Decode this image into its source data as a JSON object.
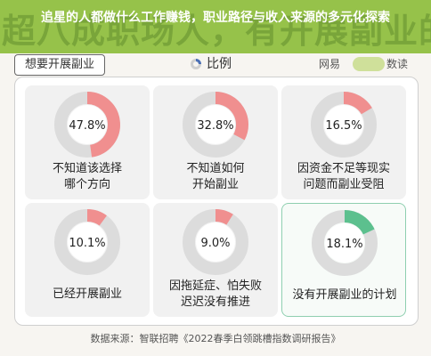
{
  "banner": {
    "headline": "追星的人都做什么工作赚钱，职业路径与收入来源的多元化探索",
    "ghost_title": "超八成职场人，有开展副业的意愿"
  },
  "ribbon_label": "想要开展副业",
  "legend": {
    "label": "比例",
    "icon": "donut-icon"
  },
  "brand": {
    "left": "网易",
    "right": "数读"
  },
  "chart_data": {
    "type": "pie",
    "layout": "grid of donut charts, 3 columns x 2 rows",
    "series": [
      {
        "label": "不知道该选择哪个方向",
        "value": 47.8,
        "value_text": "47.8%",
        "color": "#f08f8f"
      },
      {
        "label": "不知道如何开始副业",
        "value": 32.8,
        "value_text": "32.8%",
        "color": "#f08f8f"
      },
      {
        "label": "因资金不足等现实问题而副业受阻",
        "value": 16.5,
        "value_text": "16.5%",
        "color": "#f08f8f"
      },
      {
        "label": "已经开展副业",
        "value": 10.1,
        "value_text": "10.1%",
        "color": "#f08f8f"
      },
      {
        "label": "因拖延症、怕失败迟迟没有推进",
        "value": 9.0,
        "value_text": "9.0%",
        "color": "#f08f8f"
      },
      {
        "label": "没有开展副业的计划",
        "value": 18.1,
        "value_text": "18.1%",
        "color": "#5cc08e"
      }
    ],
    "track_color": "#dcdcdc"
  },
  "card_lines": [
    [
      "不知道该选择",
      "哪个方向"
    ],
    [
      "不知道如何",
      "开始副业"
    ],
    [
      "因资金不足等现实",
      "问题而副业受阻"
    ],
    [
      "已经开展副业"
    ],
    [
      "因拖延症、怕失败",
      "迟迟没有推进"
    ],
    [
      "没有开展副业的计划"
    ]
  ],
  "source": "数据来源：智联招聘《2022春季白领跳槽指数调研报告》"
}
